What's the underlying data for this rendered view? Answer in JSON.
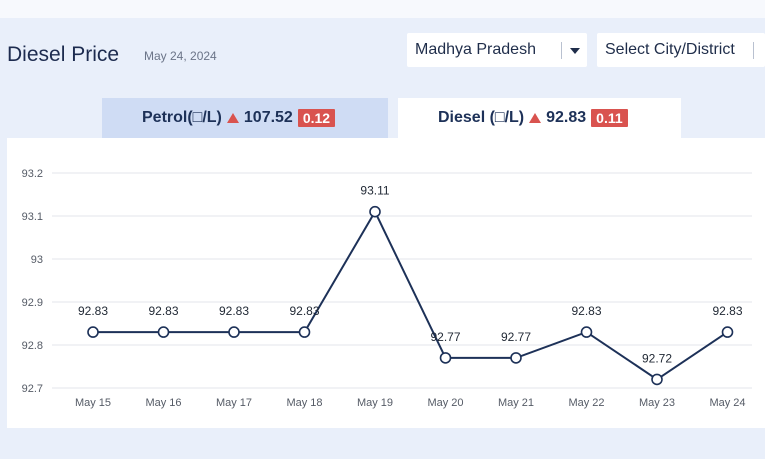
{
  "header": {
    "title": "Diesel Price",
    "date": "May 24, 2024"
  },
  "selectors": {
    "state": "Madhya Pradesh",
    "city": "Select City/District"
  },
  "tabs": {
    "petrol": {
      "label": "Petrol(□/L)",
      "price": "107.52",
      "change": "0.12"
    },
    "diesel": {
      "label": "Diesel (□/L)",
      "price": "92.83",
      "change": "0.11"
    }
  },
  "colors": {
    "line": "#1d3158",
    "up_badge": "#d9534f",
    "active_tab": "#ffffff",
    "inactive_tab": "#cfdcf4"
  },
  "chart_data": {
    "type": "line",
    "categories": [
      "May 15",
      "May 16",
      "May 17",
      "May 18",
      "May 19",
      "May 20",
      "May 21",
      "May 22",
      "May 23",
      "May 24"
    ],
    "values": [
      92.83,
      92.83,
      92.83,
      92.83,
      93.11,
      92.77,
      92.77,
      92.83,
      92.72,
      92.83
    ],
    "value_labels": [
      "92.83",
      "92.83",
      "92.83",
      "92.83",
      "93.11",
      "92.77",
      "92.77",
      "92.83",
      "92.72",
      "92.83"
    ],
    "y_ticks": [
      "92.7",
      "92.8",
      "92.9",
      "93",
      "93.1",
      "93.2"
    ],
    "ylim": [
      92.7,
      93.2
    ],
    "grid": true,
    "legend": "none"
  }
}
